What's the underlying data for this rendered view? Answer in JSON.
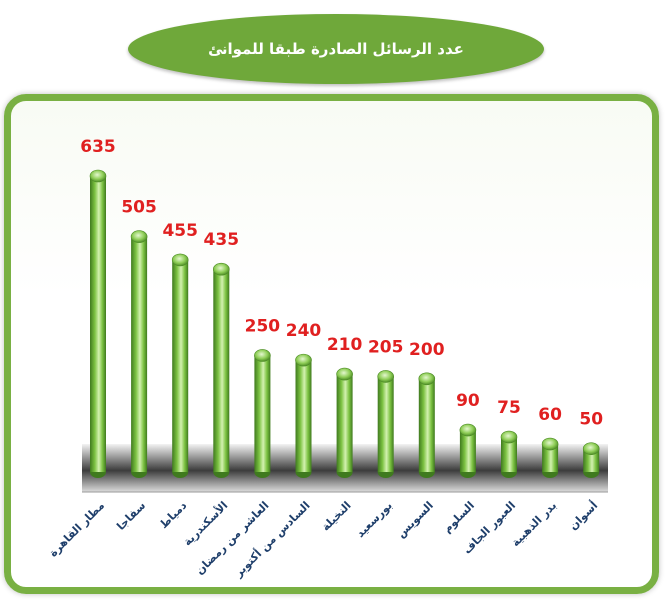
{
  "chart_data": {
    "type": "bar",
    "title": "عدد الرسائل الصادرة طبقا للموانئ",
    "xlabel": "",
    "ylabel": "",
    "categories": [
      "مطار القاهرة",
      "سفاجا",
      "دمياط",
      "الأسكندرية",
      "العاشر من رمضان",
      "السادس من أكتوبر",
      "النخيلة",
      "بورسعيد",
      "السويس",
      "السلوم",
      "العبور الجاف",
      "بدر الذهبية",
      "أسوان"
    ],
    "values": [
      635,
      505,
      455,
      435,
      250,
      240,
      210,
      205,
      200,
      90,
      75,
      60,
      50
    ],
    "ylim": [
      0,
      635
    ],
    "grid": false,
    "legend": "none",
    "colors": {
      "bar": "#7cc242",
      "bar_dark": "#3f7a1e",
      "bar_light": "#d3f1b0",
      "value_label": "#e02020",
      "category_label": "#1f3f6b",
      "title_bg": "#6fa83a",
      "frame": "#79b043"
    }
  }
}
